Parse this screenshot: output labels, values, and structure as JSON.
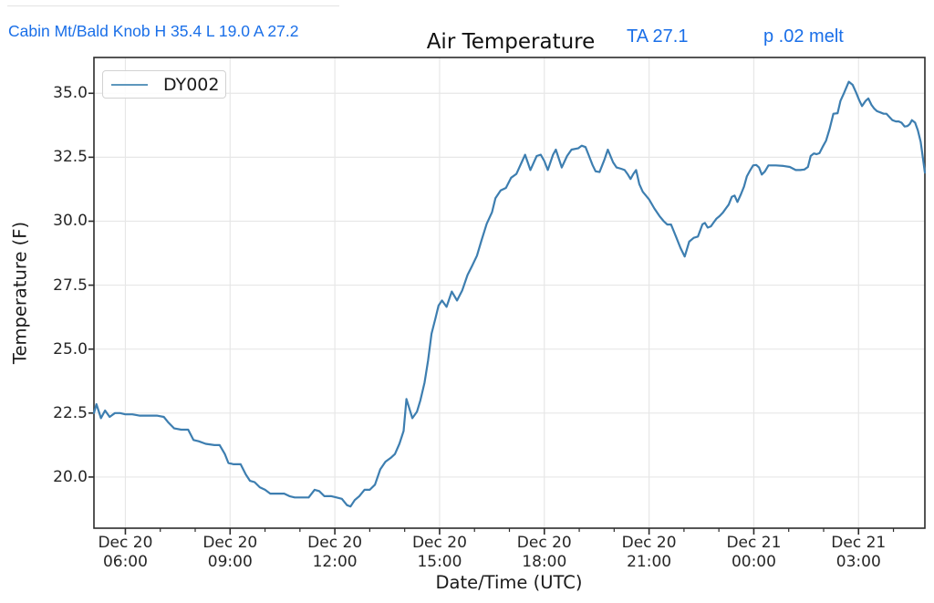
{
  "page": {
    "background": "#ffffff",
    "top_divider_color": "#e3e3e3"
  },
  "annotations": {
    "station": "Cabin Mt/Bald Knob H 35.4 L 19.0 A 27.2",
    "ta": "TA 27.1",
    "precip": "p .02 melt",
    "color": "#1a6fe8"
  },
  "chart_data": {
    "type": "line",
    "title": "Air Temperature",
    "xlabel": "Date/Time (UTC)",
    "ylabel": "Temperature (F)",
    "x_axis_note": "x values are hours since Dec 20 00:00 UTC",
    "xlim": [
      5.1,
      28.9
    ],
    "ylim": [
      18.0,
      36.4
    ],
    "grid": true,
    "legend_position": "upper-left",
    "line_color": "#3d7eb0",
    "spine_color": "#2b2b2b",
    "grid_color": "#e7e7e7",
    "tick_color": "#262626",
    "y_ticks": [
      20.0,
      22.5,
      25.0,
      27.5,
      30.0,
      32.5,
      35.0
    ],
    "x_ticks": [
      {
        "t": 6,
        "line1": "Dec 20",
        "line2": "06:00"
      },
      {
        "t": 9,
        "line1": "Dec 20",
        "line2": "09:00"
      },
      {
        "t": 12,
        "line1": "Dec 20",
        "line2": "12:00"
      },
      {
        "t": 15,
        "line1": "Dec 20",
        "line2": "15:00"
      },
      {
        "t": 18,
        "line1": "Dec 20",
        "line2": "18:00"
      },
      {
        "t": 21,
        "line1": "Dec 20",
        "line2": "21:00"
      },
      {
        "t": 24,
        "line1": "Dec 21",
        "line2": "00:00"
      },
      {
        "t": 27,
        "line1": "Dec 21",
        "line2": "03:00"
      }
    ],
    "x_minor_tick_hours": 1,
    "series": [
      {
        "name": "DY002",
        "color": "#3d7eb0",
        "points": [
          [
            5.1,
            22.5
          ],
          [
            5.17,
            22.85
          ],
          [
            5.3,
            22.3
          ],
          [
            5.42,
            22.6
          ],
          [
            5.55,
            22.35
          ],
          [
            5.7,
            22.5
          ],
          [
            5.85,
            22.5
          ],
          [
            6.0,
            22.45
          ],
          [
            6.2,
            22.45
          ],
          [
            6.4,
            22.4
          ],
          [
            6.6,
            22.4
          ],
          [
            6.9,
            22.4
          ],
          [
            7.1,
            22.35
          ],
          [
            7.22,
            22.15
          ],
          [
            7.4,
            21.9
          ],
          [
            7.6,
            21.85
          ],
          [
            7.8,
            21.85
          ],
          [
            7.95,
            21.45
          ],
          [
            8.1,
            21.4
          ],
          [
            8.3,
            21.3
          ],
          [
            8.55,
            21.25
          ],
          [
            8.7,
            21.25
          ],
          [
            8.85,
            20.9
          ],
          [
            8.95,
            20.55
          ],
          [
            9.1,
            20.5
          ],
          [
            9.3,
            20.5
          ],
          [
            9.45,
            20.1
          ],
          [
            9.57,
            19.85
          ],
          [
            9.7,
            19.8
          ],
          [
            9.85,
            19.6
          ],
          [
            10.0,
            19.5
          ],
          [
            10.15,
            19.35
          ],
          [
            10.35,
            19.35
          ],
          [
            10.55,
            19.35
          ],
          [
            10.7,
            19.25
          ],
          [
            10.85,
            19.2
          ],
          [
            11.05,
            19.2
          ],
          [
            11.25,
            19.2
          ],
          [
            11.42,
            19.5
          ],
          [
            11.55,
            19.45
          ],
          [
            11.7,
            19.25
          ],
          [
            11.9,
            19.25
          ],
          [
            12.05,
            19.2
          ],
          [
            12.2,
            19.15
          ],
          [
            12.35,
            18.9
          ],
          [
            12.45,
            18.85
          ],
          [
            12.57,
            19.1
          ],
          [
            12.7,
            19.25
          ],
          [
            12.85,
            19.5
          ],
          [
            13.0,
            19.5
          ],
          [
            13.15,
            19.7
          ],
          [
            13.3,
            20.3
          ],
          [
            13.45,
            20.6
          ],
          [
            13.6,
            20.75
          ],
          [
            13.72,
            20.9
          ],
          [
            13.85,
            21.3
          ],
          [
            13.97,
            21.8
          ],
          [
            14.05,
            23.05
          ],
          [
            14.22,
            22.3
          ],
          [
            14.35,
            22.55
          ],
          [
            14.45,
            23.0
          ],
          [
            14.57,
            23.7
          ],
          [
            14.67,
            24.55
          ],
          [
            14.77,
            25.6
          ],
          [
            14.88,
            26.2
          ],
          [
            14.97,
            26.7
          ],
          [
            15.07,
            26.9
          ],
          [
            15.2,
            26.65
          ],
          [
            15.35,
            27.25
          ],
          [
            15.5,
            26.9
          ],
          [
            15.65,
            27.3
          ],
          [
            15.8,
            27.9
          ],
          [
            15.93,
            28.25
          ],
          [
            16.07,
            28.65
          ],
          [
            16.2,
            29.25
          ],
          [
            16.35,
            29.9
          ],
          [
            16.5,
            30.35
          ],
          [
            16.6,
            30.9
          ],
          [
            16.75,
            31.2
          ],
          [
            16.9,
            31.3
          ],
          [
            17.05,
            31.7
          ],
          [
            17.2,
            31.85
          ],
          [
            17.35,
            32.3
          ],
          [
            17.45,
            32.6
          ],
          [
            17.6,
            32.0
          ],
          [
            17.78,
            32.55
          ],
          [
            17.9,
            32.6
          ],
          [
            18.0,
            32.35
          ],
          [
            18.1,
            32.0
          ],
          [
            18.25,
            32.6
          ],
          [
            18.33,
            32.8
          ],
          [
            18.5,
            32.1
          ],
          [
            18.65,
            32.55
          ],
          [
            18.78,
            32.8
          ],
          [
            18.97,
            32.85
          ],
          [
            19.07,
            32.95
          ],
          [
            19.18,
            32.9
          ],
          [
            19.28,
            32.55
          ],
          [
            19.38,
            32.2
          ],
          [
            19.47,
            31.95
          ],
          [
            19.58,
            31.92
          ],
          [
            19.72,
            32.4
          ],
          [
            19.82,
            32.8
          ],
          [
            19.97,
            32.3
          ],
          [
            20.07,
            32.1
          ],
          [
            20.2,
            32.05
          ],
          [
            20.3,
            32.0
          ],
          [
            20.38,
            31.85
          ],
          [
            20.47,
            31.65
          ],
          [
            20.55,
            31.85
          ],
          [
            20.63,
            32.0
          ],
          [
            20.72,
            31.45
          ],
          [
            20.82,
            31.15
          ],
          [
            21.0,
            30.85
          ],
          [
            21.15,
            30.5
          ],
          [
            21.3,
            30.2
          ],
          [
            21.42,
            30.0
          ],
          [
            21.52,
            29.87
          ],
          [
            21.63,
            29.87
          ],
          [
            21.77,
            29.4
          ],
          [
            21.9,
            28.95
          ],
          [
            22.02,
            28.62
          ],
          [
            22.15,
            29.2
          ],
          [
            22.28,
            29.35
          ],
          [
            22.4,
            29.4
          ],
          [
            22.53,
            29.88
          ],
          [
            22.6,
            29.93
          ],
          [
            22.68,
            29.75
          ],
          [
            22.77,
            29.8
          ],
          [
            22.85,
            29.95
          ],
          [
            22.93,
            30.1
          ],
          [
            23.02,
            30.2
          ],
          [
            23.12,
            30.35
          ],
          [
            23.2,
            30.5
          ],
          [
            23.28,
            30.65
          ],
          [
            23.37,
            30.95
          ],
          [
            23.45,
            31.0
          ],
          [
            23.53,
            30.75
          ],
          [
            23.63,
            31.05
          ],
          [
            23.72,
            31.35
          ],
          [
            23.8,
            31.75
          ],
          [
            23.9,
            32.0
          ],
          [
            23.98,
            32.18
          ],
          [
            24.07,
            32.2
          ],
          [
            24.15,
            32.1
          ],
          [
            24.23,
            31.82
          ],
          [
            24.32,
            31.95
          ],
          [
            24.42,
            32.18
          ],
          [
            24.63,
            32.18
          ],
          [
            24.85,
            32.16
          ],
          [
            25.03,
            32.12
          ],
          [
            25.2,
            32.0
          ],
          [
            25.33,
            32.0
          ],
          [
            25.45,
            32.02
          ],
          [
            25.55,
            32.12
          ],
          [
            25.63,
            32.55
          ],
          [
            25.72,
            32.65
          ],
          [
            25.8,
            32.62
          ],
          [
            25.88,
            32.66
          ],
          [
            25.97,
            32.9
          ],
          [
            26.07,
            33.15
          ],
          [
            26.17,
            33.6
          ],
          [
            26.28,
            34.2
          ],
          [
            26.4,
            34.22
          ],
          [
            26.48,
            34.7
          ],
          [
            26.58,
            35.0
          ],
          [
            26.72,
            35.45
          ],
          [
            26.83,
            35.33
          ],
          [
            26.93,
            35.03
          ],
          [
            27.02,
            34.73
          ],
          [
            27.1,
            34.5
          ],
          [
            27.2,
            34.7
          ],
          [
            27.28,
            34.8
          ],
          [
            27.37,
            34.55
          ],
          [
            27.45,
            34.4
          ],
          [
            27.53,
            34.3
          ],
          [
            27.63,
            34.25
          ],
          [
            27.72,
            34.2
          ],
          [
            27.8,
            34.2
          ],
          [
            27.88,
            34.08
          ],
          [
            27.97,
            33.95
          ],
          [
            28.07,
            33.9
          ],
          [
            28.15,
            33.9
          ],
          [
            28.23,
            33.85
          ],
          [
            28.32,
            33.7
          ],
          [
            28.4,
            33.72
          ],
          [
            28.47,
            33.8
          ],
          [
            28.53,
            33.95
          ],
          [
            28.62,
            33.85
          ],
          [
            28.7,
            33.55
          ],
          [
            28.78,
            33.1
          ],
          [
            28.85,
            32.4
          ],
          [
            28.9,
            31.9
          ]
        ]
      }
    ]
  }
}
